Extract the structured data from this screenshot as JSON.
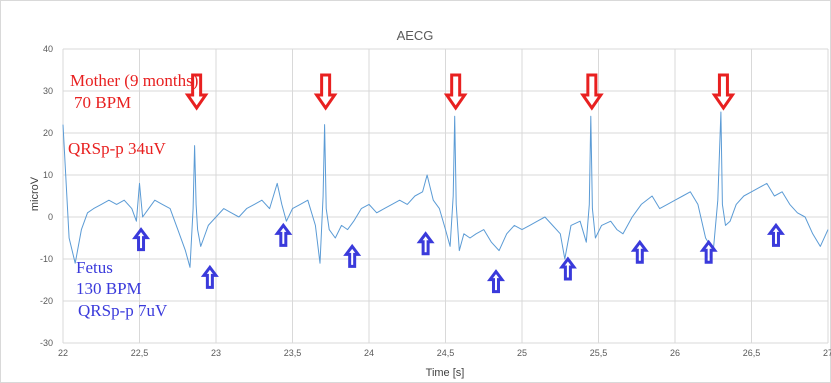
{
  "chart_data": {
    "type": "line",
    "title": "AECG",
    "xlabel": "Time [s]",
    "ylabel": "microV",
    "xlim": [
      22,
      27
    ],
    "ylim": [
      -30,
      40
    ],
    "x_ticks": [
      22,
      22.5,
      23,
      23.5,
      24,
      24.5,
      25,
      25.5,
      26,
      26.5,
      27
    ],
    "x_tick_labels": [
      "22",
      "22,5",
      "23",
      "23,5",
      "24",
      "24,5",
      "25",
      "25,5",
      "26",
      "26,5",
      "27"
    ],
    "y_ticks": [
      -30,
      -20,
      -10,
      0,
      10,
      20,
      30,
      40
    ],
    "y_tick_labels": [
      "-30",
      "-20",
      "-10",
      "0",
      "10",
      "20",
      "30",
      "40"
    ],
    "grid": true,
    "line_color": "#5b9bd5",
    "series": [
      {
        "x": [
          22.0,
          22.04,
          22.08,
          22.12,
          22.16,
          22.2,
          22.25,
          22.3,
          22.35,
          22.4,
          22.45,
          22.48,
          22.5,
          22.52,
          22.56,
          22.6,
          22.65,
          22.7,
          22.75,
          22.8,
          22.83,
          22.85,
          22.86,
          22.87,
          22.88,
          22.9,
          22.92,
          22.95,
          23.0,
          23.05,
          23.1,
          23.15,
          23.2,
          23.25,
          23.3,
          23.35,
          23.4,
          23.43,
          23.46,
          23.5,
          23.55,
          23.6,
          23.65,
          23.68,
          23.7,
          23.71,
          23.72,
          23.74,
          23.78,
          23.82,
          23.86,
          23.9,
          23.95,
          24.0,
          24.05,
          24.1,
          24.15,
          24.2,
          24.25,
          24.3,
          24.35,
          24.38,
          24.42,
          24.46,
          24.5,
          24.53,
          24.55,
          24.56,
          24.57,
          24.59,
          24.62,
          24.66,
          24.7,
          24.75,
          24.8,
          24.85,
          24.9,
          24.95,
          25.0,
          25.05,
          25.1,
          25.15,
          25.2,
          25.25,
          25.28,
          25.32,
          25.38,
          25.42,
          25.44,
          25.45,
          25.46,
          25.48,
          25.52,
          25.58,
          25.62,
          25.66,
          25.72,
          25.78,
          25.85,
          25.9,
          25.95,
          26.0,
          26.05,
          26.1,
          26.15,
          26.2,
          26.25,
          26.28,
          26.3,
          26.31,
          26.33,
          26.36,
          26.4,
          26.45,
          26.5,
          26.55,
          26.6,
          26.65,
          26.7,
          26.75,
          26.8,
          26.85,
          26.9,
          26.95,
          27.0
        ],
        "y": [
          22,
          -5,
          -11,
          -3,
          1,
          2,
          3,
          4,
          3,
          4,
          2,
          -1,
          8,
          0,
          2,
          4,
          3,
          2,
          -3,
          -8,
          -12,
          2,
          17,
          3,
          -3,
          -7,
          -5,
          -2,
          0,
          2,
          1,
          0,
          2,
          3,
          4,
          2,
          8,
          3,
          -1,
          2,
          3,
          4,
          -2,
          -11,
          5,
          22,
          2,
          -3,
          -5,
          -2,
          -3,
          -1,
          2,
          3,
          1,
          2,
          3,
          4,
          3,
          5,
          6,
          10,
          4,
          2,
          -3,
          -7,
          5,
          24,
          3,
          -8,
          -4,
          -5,
          -4,
          -3,
          -6,
          -8,
          -4,
          -2,
          -3,
          -2,
          -1,
          0,
          -2,
          -4,
          -10,
          -2,
          -1,
          -6,
          3,
          24,
          2,
          -5,
          -2,
          -1,
          -3,
          -4,
          0,
          3,
          5,
          2,
          3,
          4,
          5,
          6,
          3,
          -5,
          -8,
          4,
          25,
          3,
          -2,
          -1,
          3,
          5,
          6,
          7,
          8,
          5,
          6,
          3,
          1,
          0,
          -4,
          -7,
          -3
        ]
      }
    ],
    "annotations": {
      "mother_label": [
        "Mother (9 months)",
        "70 BPM",
        "QRSp-p 34uV"
      ],
      "mother_color": "#e82020",
      "fetus_label": [
        "Fetus",
        "130 BPM",
        "QRSp-p 7uV"
      ],
      "fetus_color": "#3a3adb",
      "mother_arrows_x": [
        22.88,
        23.71,
        24.56,
        25.45,
        26.31
      ],
      "fetus_arrows": [
        {
          "x": 22.51,
          "y": -3
        },
        {
          "x": 22.96,
          "y": -12
        },
        {
          "x": 23.44,
          "y": -2
        },
        {
          "x": 23.89,
          "y": -7
        },
        {
          "x": 24.37,
          "y": -4
        },
        {
          "x": 24.83,
          "y": -13
        },
        {
          "x": 25.3,
          "y": -10
        },
        {
          "x": 25.77,
          "y": -6
        },
        {
          "x": 26.22,
          "y": -6
        },
        {
          "x": 26.66,
          "y": -2
        }
      ]
    }
  }
}
